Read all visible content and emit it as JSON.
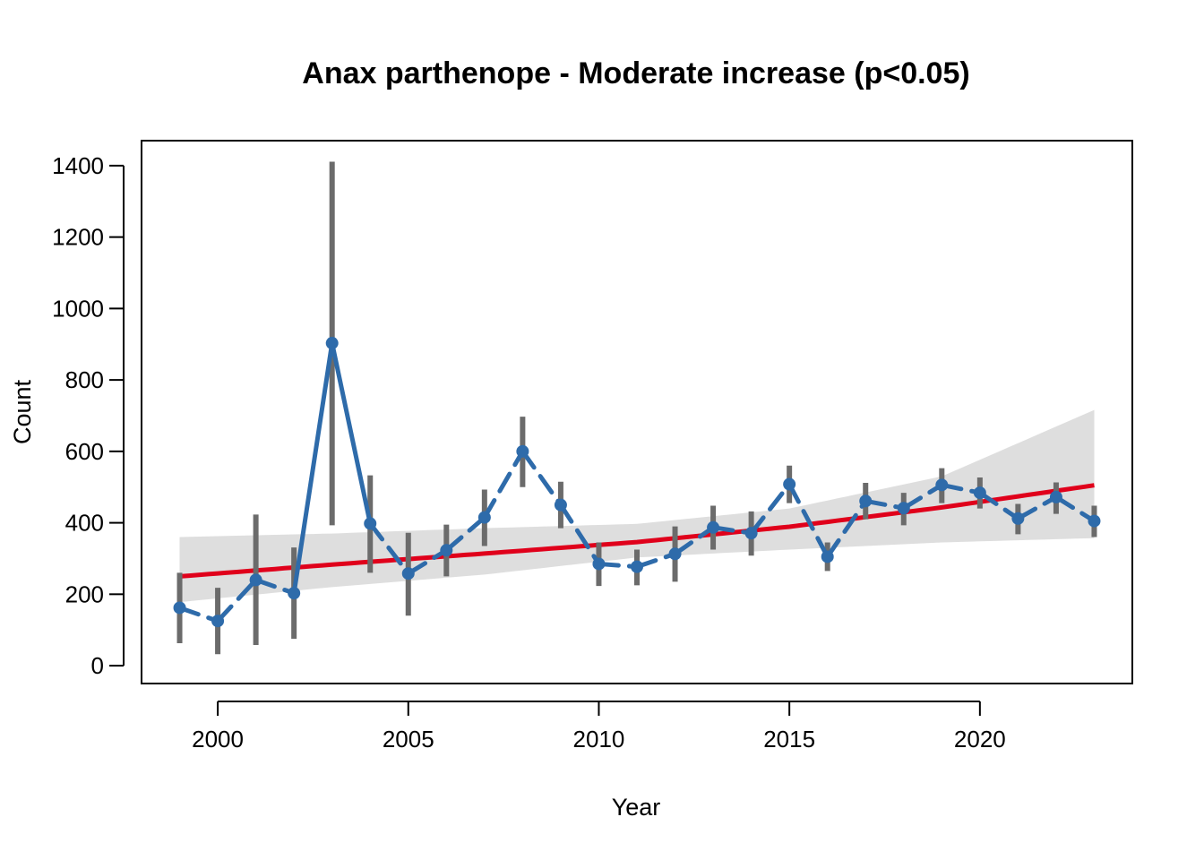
{
  "chart_data": {
    "type": "line",
    "title": "Anax parthenope - Moderate increase (p<0.05)",
    "xlabel": "Year",
    "ylabel": "Count",
    "xlim": [
      1998,
      2024
    ],
    "ylim": [
      -50,
      1470
    ],
    "x_ticks": [
      "2000",
      "2005",
      "2010",
      "2015",
      "2020"
    ],
    "y_ticks": [
      "0",
      "200",
      "400",
      "600",
      "800",
      "1000",
      "1200",
      "1400"
    ],
    "grid": false,
    "legend": "none",
    "colors": {
      "observed": "#2E6BAA",
      "error_bars": "#6B6B6B",
      "trend": "#E0001B",
      "confidence_band": "#DEDEDE"
    },
    "observed": {
      "x": [
        1999,
        2000,
        2001,
        2002,
        2003,
        2004,
        2005,
        2006,
        2007,
        2008,
        2009,
        2010,
        2011,
        2012,
        2013,
        2014,
        2015,
        2016,
        2017,
        2018,
        2019,
        2020,
        2021,
        2022,
        2023
      ],
      "y": [
        162,
        125,
        240,
        203,
        903,
        398,
        258,
        323,
        415,
        600,
        450,
        285,
        277,
        313,
        387,
        371,
        508,
        305,
        461,
        441,
        506,
        484,
        412,
        472,
        405
      ],
      "lower": [
        63,
        32,
        58,
        75,
        393,
        260,
        140,
        250,
        335,
        500,
        385,
        223,
        225,
        235,
        325,
        308,
        455,
        265,
        410,
        393,
        455,
        440,
        368,
        425,
        360
      ],
      "upper": [
        260,
        218,
        423,
        331,
        1411,
        533,
        372,
        395,
        493,
        697,
        515,
        345,
        325,
        390,
        448,
        432,
        560,
        345,
        512,
        484,
        553,
        527,
        453,
        513,
        448
      ]
    },
    "trend": {
      "x": [
        1999,
        2003,
        2007,
        2011,
        2015,
        2019,
        2023
      ],
      "fit": [
        250,
        283,
        314,
        346,
        389,
        443,
        505
      ],
      "lower": [
        178,
        220,
        255,
        303,
        325,
        345,
        357
      ],
      "upper": [
        360,
        370,
        385,
        397,
        440,
        530,
        716
      ]
    }
  }
}
